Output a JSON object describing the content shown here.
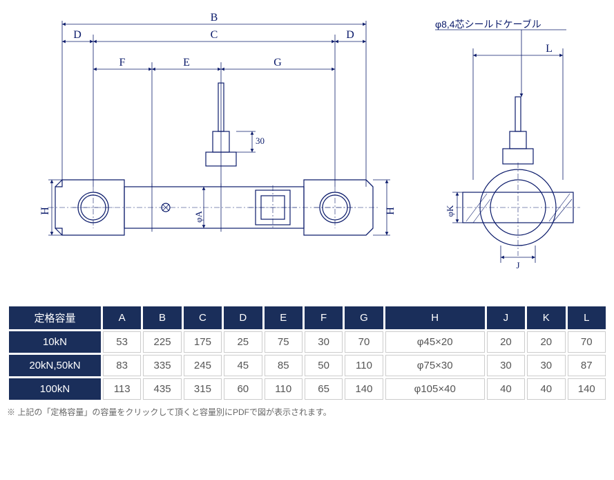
{
  "diagram": {
    "cable_label": "φ8,4芯シールドケーブル",
    "dims": {
      "B": "B",
      "C": "C",
      "D": "D",
      "E": "E",
      "F": "F",
      "G": "G",
      "H": "H",
      "phiA": "φA",
      "thirty": "30",
      "phiK": "φK",
      "J": "J",
      "L": "L"
    },
    "colors": {
      "line": "#0a1a6a",
      "bg": "#ffffff"
    }
  },
  "table": {
    "headers": [
      "定格容量",
      "A",
      "B",
      "C",
      "D",
      "E",
      "F",
      "G",
      "H",
      "J",
      "K",
      "L"
    ],
    "rows": [
      {
        "cap": "10kN",
        "vals": [
          "53",
          "225",
          "175",
          "25",
          "75",
          "30",
          "70",
          "φ45×20",
          "20",
          "20",
          "70"
        ]
      },
      {
        "cap": "20kN,50kN",
        "vals": [
          "83",
          "335",
          "245",
          "45",
          "85",
          "50",
          "110",
          "φ75×30",
          "30",
          "30",
          "87"
        ]
      },
      {
        "cap": "100kN",
        "vals": [
          "113",
          "435",
          "315",
          "60",
          "110",
          "65",
          "140",
          "φ105×40",
          "40",
          "40",
          "140"
        ]
      }
    ],
    "col_widths": [
      "120",
      "50",
      "50",
      "50",
      "50",
      "50",
      "50",
      "50",
      "130",
      "50",
      "50",
      "50"
    ]
  },
  "footnote": "※ 上記の「定格容量」の容量をクリックして頂くと容量別にPDFで図が表示されます。"
}
